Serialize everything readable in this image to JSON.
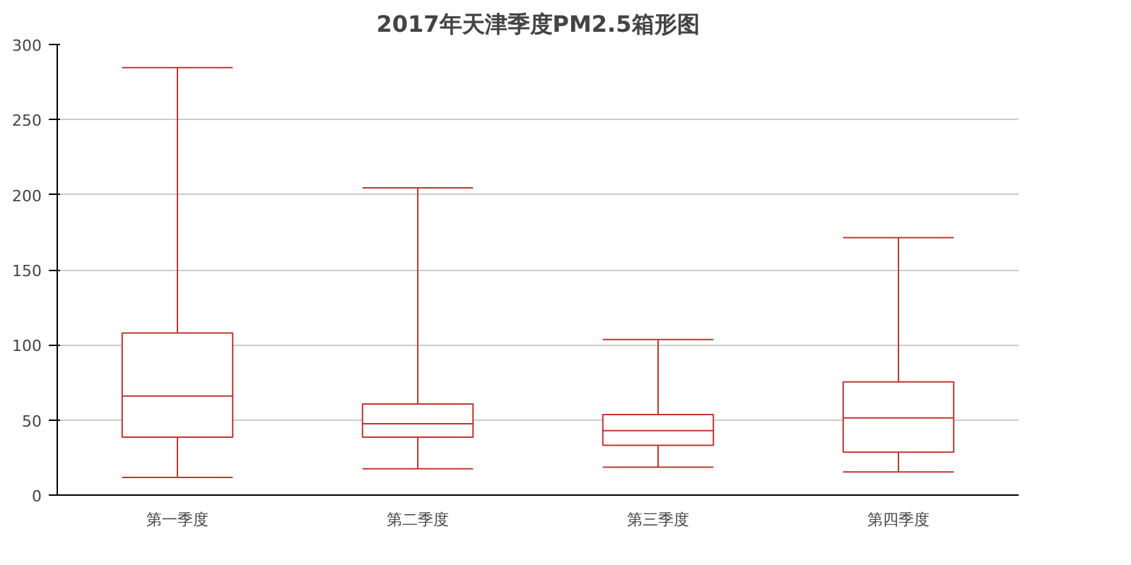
{
  "chart_data": {
    "type": "box",
    "title": "2017年天津季度PM2.5箱形图",
    "categories": [
      "第一季度",
      "第二季度",
      "第三季度",
      "第四季度"
    ],
    "series": [
      {
        "color": "#c23531",
        "boxes": [
          {
            "low": 11.8,
            "q1": 38.6,
            "median": 66,
            "q3": 107.9,
            "high": 284.6
          },
          {
            "low": 17.5,
            "q1": 38.6,
            "median": 47.5,
            "q3": 60.7,
            "high": 204.6
          },
          {
            "low": 18.6,
            "q1": 33.2,
            "median": 42.9,
            "q3": 53.6,
            "high": 103.6
          },
          {
            "low": 15.4,
            "q1": 28.6,
            "median": 51.4,
            "q3": 75.4,
            "high": 171.4
          }
        ]
      }
    ],
    "ylim": [
      0,
      300
    ],
    "yticks": [
      0,
      50,
      100,
      150,
      200,
      250,
      300
    ],
    "grid": "y"
  }
}
